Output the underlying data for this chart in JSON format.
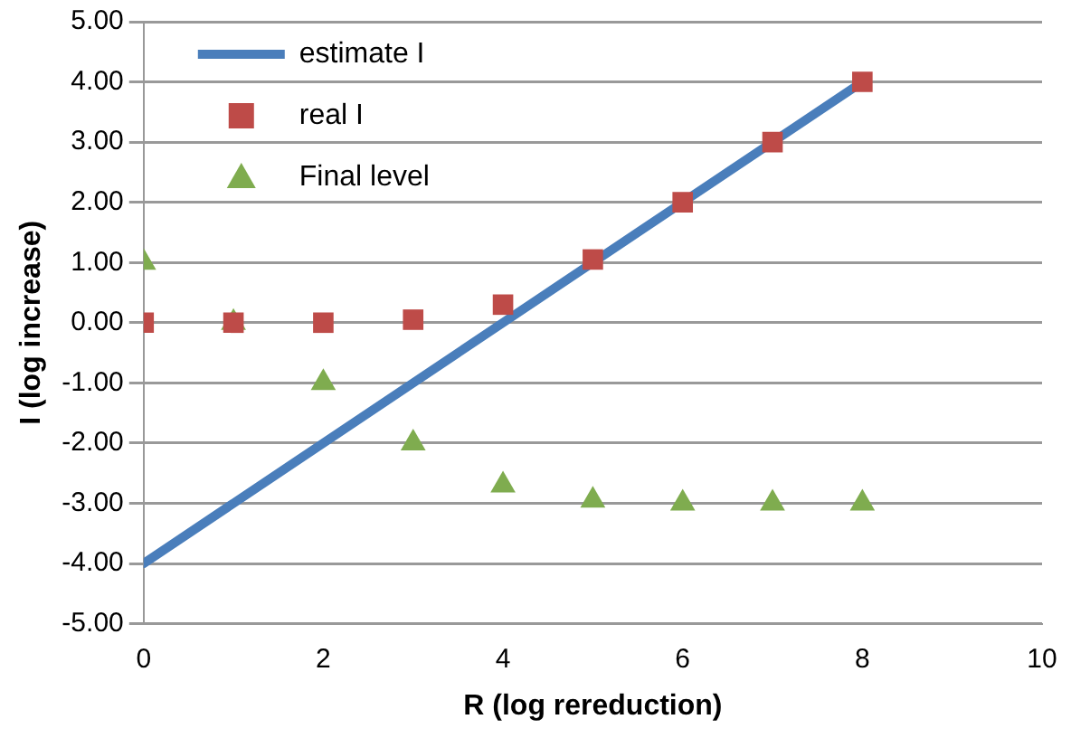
{
  "chart_data": {
    "type": "scatter",
    "xlabel": "R (log rereduction)",
    "ylabel": "I (log increase)",
    "xlim": [
      0,
      10
    ],
    "xticks": [
      0,
      2,
      4,
      6,
      8,
      10
    ],
    "ylim": [
      -5,
      5
    ],
    "yticks": [
      {
        "value": -5,
        "label": "-5.00"
      },
      {
        "value": -4,
        "label": "-4.00"
      },
      {
        "value": -3,
        "label": "-3.00"
      },
      {
        "value": -2,
        "label": "-2.00"
      },
      {
        "value": -1,
        "label": "-1.00"
      },
      {
        "value": 0,
        "label": "0.00"
      },
      {
        "value": 1,
        "label": "1.00"
      },
      {
        "value": 2,
        "label": "2.00"
      },
      {
        "value": 3,
        "label": "3.00"
      },
      {
        "value": 4,
        "label": "4.00"
      },
      {
        "value": 5,
        "label": "5.00"
      }
    ],
    "grid": "y",
    "legend": "top left",
    "series": [
      {
        "name": "estimate I",
        "type": "line",
        "marker": "none",
        "color": "#4a7ebb",
        "x": [
          0,
          8
        ],
        "values": [
          -4,
          4
        ]
      },
      {
        "name": "real I",
        "type": "scatter",
        "marker": "square",
        "color": "#be4b48",
        "x": [
          0,
          1,
          2,
          3,
          4,
          5,
          6,
          7,
          8
        ],
        "values": [
          0,
          0,
          0,
          0.05,
          0.3,
          1.05,
          2,
          3,
          4
        ]
      },
      {
        "name": "Final level",
        "type": "scatter",
        "marker": "triangle",
        "color": "#7fac4f",
        "x": [
          0,
          1,
          2,
          3,
          4,
          5,
          6,
          7,
          8
        ],
        "values": [
          1,
          0,
          -1,
          -2,
          -2.7,
          -2.95,
          -3,
          -3,
          -3
        ]
      }
    ]
  }
}
